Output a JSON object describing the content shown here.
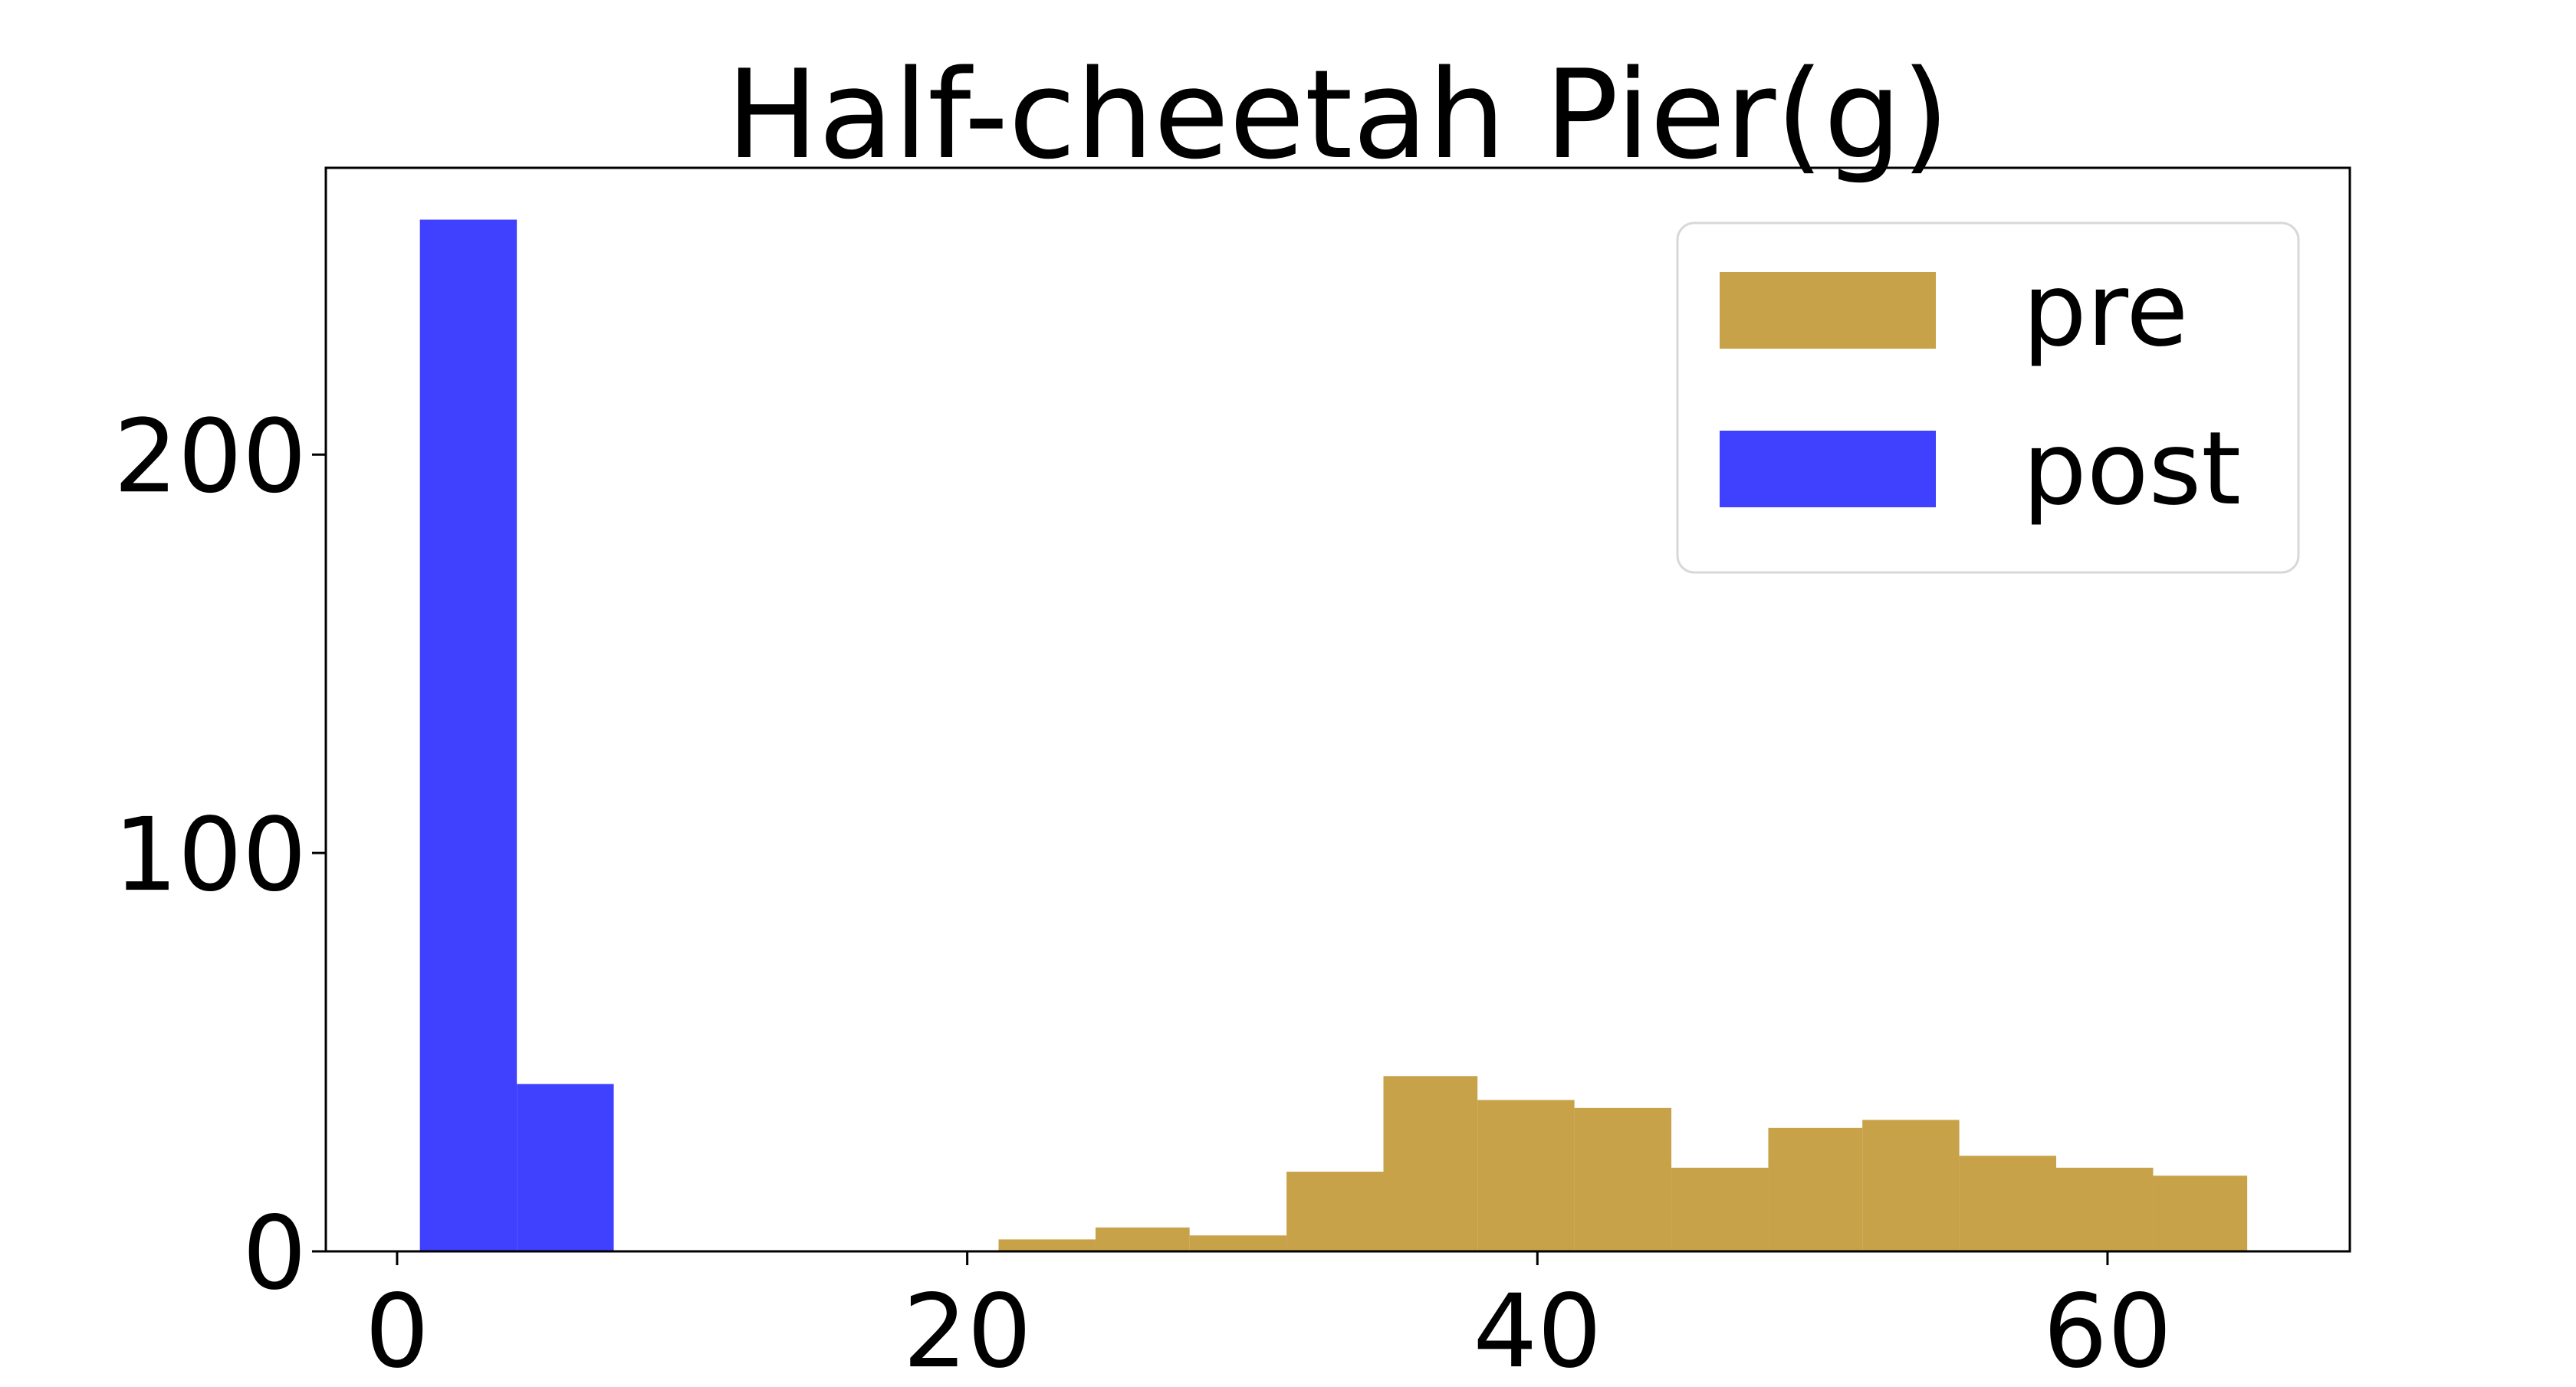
{
  "chart_data": {
    "type": "histogram",
    "title": "Half-cheetah Pier(g)",
    "xlabel": "",
    "ylabel": "",
    "xlim": [
      -2.5,
      68.5
    ],
    "ylim": [
      0,
      272
    ],
    "xticks": [
      0,
      20,
      40,
      60
    ],
    "yticks": [
      0,
      100,
      200
    ],
    "grid": false,
    "legend": {
      "placement": "top-right"
    },
    "series": [
      {
        "name": "pre",
        "color": "#c8a249",
        "bins": [
          {
            "x0": 21.1,
            "x1": 24.5,
            "count": 3
          },
          {
            "x0": 24.5,
            "x1": 27.8,
            "count": 6
          },
          {
            "x0": 27.8,
            "x1": 31.2,
            "count": 4
          },
          {
            "x0": 31.2,
            "x1": 34.6,
            "count": 20
          },
          {
            "x0": 34.6,
            "x1": 37.9,
            "count": 44
          },
          {
            "x0": 37.9,
            "x1": 41.3,
            "count": 38
          },
          {
            "x0": 41.3,
            "x1": 44.7,
            "count": 36
          },
          {
            "x0": 44.7,
            "x1": 48.1,
            "count": 21
          },
          {
            "x0": 48.1,
            "x1": 51.4,
            "count": 31
          },
          {
            "x0": 51.4,
            "x1": 54.8,
            "count": 33
          },
          {
            "x0": 54.8,
            "x1": 58.2,
            "count": 24
          },
          {
            "x0": 58.2,
            "x1": 61.6,
            "count": 21
          },
          {
            "x0": 61.6,
            "x1": 64.9,
            "count": 19
          }
        ]
      },
      {
        "name": "post",
        "color": "#4040ff",
        "bins": [
          {
            "x0": 0.8,
            "x1": 4.2,
            "count": 259
          },
          {
            "x0": 4.2,
            "x1": 7.6,
            "count": 42
          }
        ]
      }
    ]
  }
}
